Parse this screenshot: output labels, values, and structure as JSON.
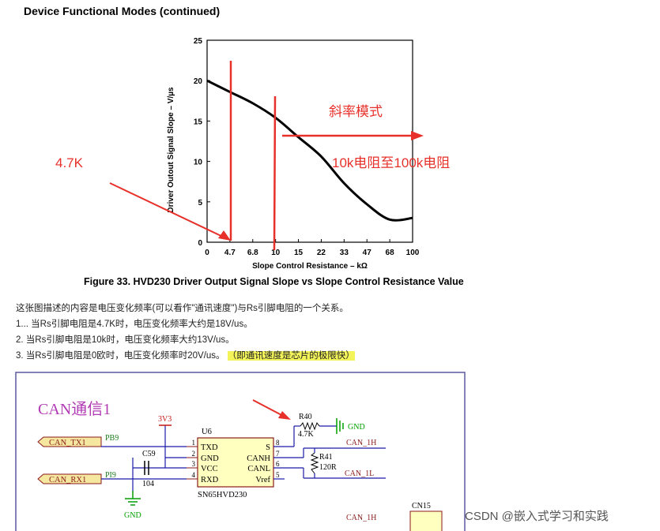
{
  "page": {
    "section_heading": "Device Functional Modes (continued)",
    "figure_caption": "Figure 33.  HVD230 Driver Output Signal Slope vs Slope Control Resistance Value",
    "notes": [
      "这张图描述的内容是电压变化频率(可以看作\"通讯速度\")与Rs引脚电阻的一个关系。",
      "1... 当Rs引脚电阻是4.7K时，电压变化频率大约是18V/us。",
      "2. 当Rs引脚电阻是10k时，电压变化频率大约13V/us。",
      "3. 当Rs引脚电阻是0欧时，电压变化频率时20V/us。"
    ],
    "note_highlight": "（即通讯速度是芯片的极限快）",
    "watermark": "CSDN @嵌入式学习和实践"
  },
  "chart_data": {
    "type": "line",
    "title": "",
    "xlabel": "Slope Control Resistance – kΩ",
    "ylabel": "Driver Outout Signal Slope – V/µs",
    "x_ticks": [
      "0",
      "4.7",
      "6.8",
      "10",
      "15",
      "22",
      "33",
      "47",
      "68",
      "100"
    ],
    "y_ticks": [
      "0",
      "5",
      "10",
      "15",
      "20",
      "25"
    ],
    "ylim": [
      0,
      25
    ],
    "grid": false,
    "x_scale": "categorical tick labels (evenly spaced)",
    "series": [
      {
        "x": [
          "0",
          "4.7",
          "6.8",
          "10",
          "15",
          "22",
          "33",
          "47",
          "68",
          "100"
        ],
        "values": [
          20,
          18.6,
          17.2,
          15.4,
          13.0,
          10.6,
          7.3,
          4.7,
          2.8,
          3.0
        ],
        "color": "#000000"
      }
    ],
    "annotations": {
      "label_4_7k": "4.7K",
      "label_slope_mode": "斜率模式",
      "label_range": "10k电阻至100k电阻",
      "annotation_color": "#e8302a"
    }
  },
  "schematic": {
    "title": "CAN通信1",
    "title_color": "#b23bb5",
    "net_color": "#1a1aa8",
    "label_color": "#c81414",
    "part_color": "#8a1a1a",
    "power_color": "#00a000",
    "pin_color": "#1a7a1a",
    "port_can_tx": "CAN_TX1",
    "port_can_rx": "CAN_RX1",
    "pin_pb9": "PB9",
    "pin_pi9": "PI9",
    "rail_3v3": "3V3",
    "cap_ref": "C59",
    "cap_value": "104",
    "gnd_left": "GND",
    "ic_ref": "U6",
    "ic_part": "SN65HVD230",
    "ic_left_pins": [
      {
        "num": "1",
        "name": "TXD"
      },
      {
        "num": "2",
        "name": "GND"
      },
      {
        "num": "3",
        "name": "VCC"
      },
      {
        "num": "4",
        "name": "RXD"
      }
    ],
    "ic_right_pins": [
      {
        "num": "8",
        "name": "S"
      },
      {
        "num": "7",
        "name": "CANH"
      },
      {
        "num": "6",
        "name": "CANL"
      },
      {
        "num": "5",
        "name": "Vref"
      }
    ],
    "r40_ref": "R40",
    "r40_value": "4.7K",
    "gnd_right": "GND",
    "r41_ref": "R41",
    "r41_value": "120R",
    "net_can_1h": "CAN_1H",
    "net_can_1l": "CAN_1L",
    "net_can_1h_cut": "CAN_1H",
    "connector_ref": "CN15"
  }
}
